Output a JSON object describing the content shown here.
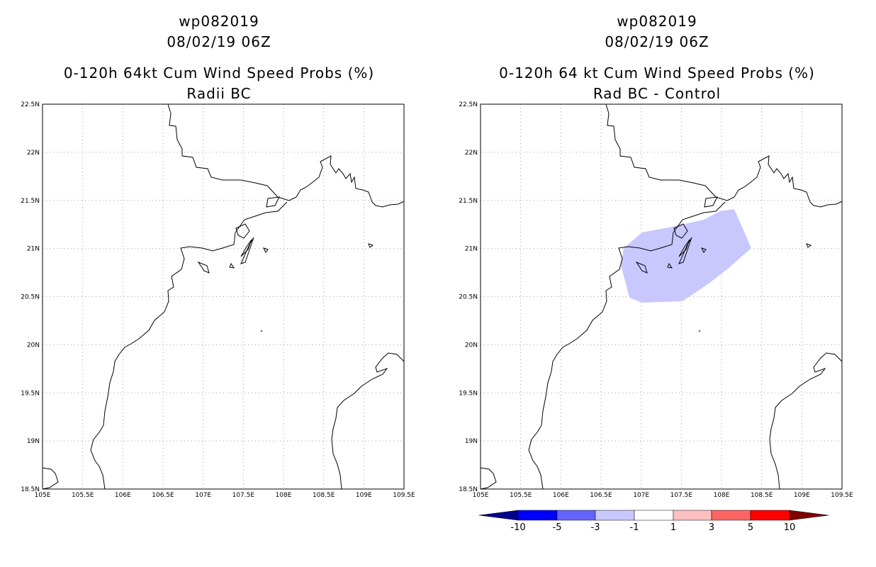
{
  "left_panel": {
    "title_line1": "wp082019",
    "title_line2": "08/02/19 06Z",
    "title_line3": "0-120h 64kt Cum Wind Speed Probs (%)",
    "title_line4": "Radii BC"
  },
  "right_panel": {
    "title_line1": "wp082019",
    "title_line2": "08/02/19 06Z",
    "title_line3": "0-120h 64 kt Cum Wind Speed Probs (%)",
    "title_line4": "Rad BC - Control",
    "shaded_region_color": "#c8c8ff"
  },
  "axes": {
    "lat_labels": [
      "22.5N",
      "22N",
      "21.5N",
      "21N",
      "20.5N",
      "20N",
      "19.5N",
      "19N",
      "18.5N"
    ],
    "lon_labels": [
      "105E",
      "105.5E",
      "106E",
      "106.5E",
      "107E",
      "107.5E",
      "108E",
      "108.5E",
      "109E",
      "109.5E"
    ]
  },
  "colorbar": {
    "labels": [
      "-10",
      "-5",
      "-3",
      "-1",
      "1",
      "3",
      "5",
      "10"
    ],
    "colors": [
      "#00008c",
      "#0000ff",
      "#6464ff",
      "#c8c8ff",
      "#ffffff",
      "#ffc0c0",
      "#ff6464",
      "#ff0000",
      "#800000"
    ]
  }
}
